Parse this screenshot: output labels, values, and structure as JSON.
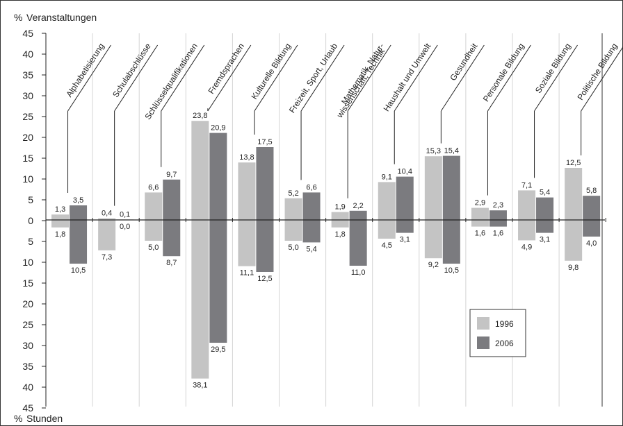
{
  "chart_data": {
    "type": "bar",
    "title": "",
    "top_label_pct": "%",
    "top_label": "Veranstaltungen",
    "bottom_label_pct": "%",
    "bottom_label": "Stunden",
    "ylim": [
      -45,
      45
    ],
    "y_ticks": [
      45,
      40,
      35,
      30,
      25,
      20,
      15,
      10,
      5,
      0,
      5,
      10,
      15,
      20,
      25,
      30,
      35,
      40,
      45
    ],
    "grid": "vertical lines between categories",
    "legend_position": "bottom-right",
    "categories": [
      "Alphabetisierung",
      "Schulabschlüsse",
      "Schlüsselqualifikationen",
      "Fremdsprachen",
      "Kulturelle Bildung",
      "Freizeit, Sport, Urlaub",
      "Mathematik, Natur-|wissenschaft, Technik",
      "Haushalt und Umwelt",
      "Gesundheit",
      "Personale Bildung",
      "Soziale Bildung",
      "Politische Bildung"
    ],
    "series": [
      {
        "name": "1996",
        "color": "#c4c4c4",
        "veranstaltungen": [
          1.3,
          0.4,
          6.6,
          23.8,
          13.8,
          5.2,
          1.9,
          9.1,
          15.3,
          2.9,
          7.1,
          12.5
        ],
        "veranstaltungen_labels": [
          "1,3",
          "0,4",
          "6,6",
          "23,8",
          "13,8",
          "5,2",
          "1,9",
          "9,1",
          "15,3",
          "2,9",
          "7,1",
          "12,5"
        ],
        "stunden": [
          1.8,
          7.3,
          5.0,
          38.1,
          11.1,
          5.0,
          1.8,
          4.5,
          9.2,
          1.6,
          4.9,
          9.8
        ],
        "stunden_labels": [
          "1,8",
          "7,3",
          "5,0",
          "38,1",
          "11,1",
          "5,0",
          "1,8",
          "4,5",
          "9,2",
          "1,6",
          "4,9",
          "9,8"
        ]
      },
      {
        "name": "2006",
        "color": "#7b7b7f",
        "veranstaltungen": [
          3.5,
          0.1,
          9.7,
          20.9,
          17.5,
          6.6,
          2.2,
          10.4,
          15.4,
          2.3,
          5.4,
          5.8
        ],
        "veranstaltungen_labels": [
          "3,5",
          "0,1",
          "9,7",
          "20,9",
          "17,5",
          "6,6",
          "2,2",
          "10,4",
          "15,4",
          "2,3",
          "5,4",
          "5,8"
        ],
        "stunden": [
          10.5,
          0.0,
          8.7,
          29.5,
          12.5,
          5.4,
          11.0,
          3.1,
          10.5,
          1.6,
          3.1,
          4.0
        ],
        "stunden_labels": [
          "10,5",
          "0,0",
          "8,7",
          "29,5",
          "12,5",
          "5,4",
          "11,0",
          "3,1",
          "10,5",
          "1,6",
          "3,1",
          "4,0"
        ]
      }
    ]
  }
}
